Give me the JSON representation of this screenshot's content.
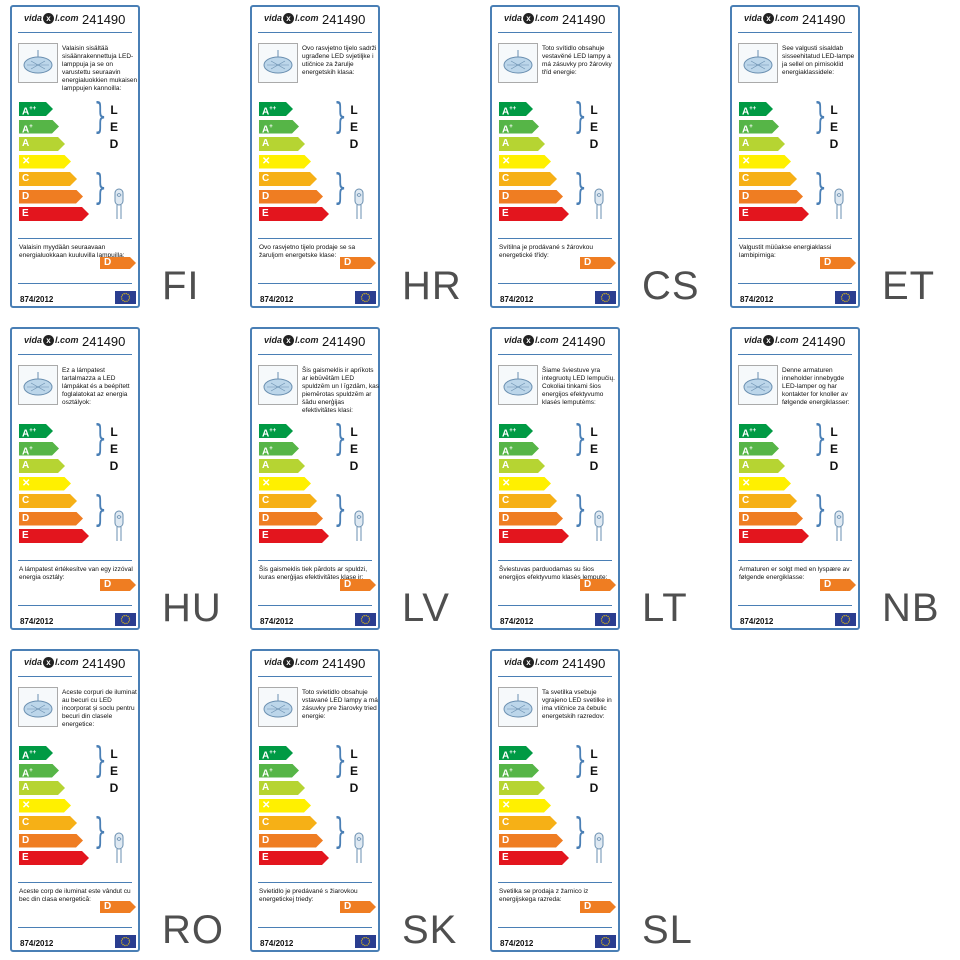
{
  "colors": {
    "border": "#4a7fb5",
    "app": "#009a44",
    "ap": "#56b547",
    "a": "#b6d432",
    "b": "#fff000",
    "c": "#f6b016",
    "d": "#ef7d22",
    "e": "#e3151e"
  },
  "common": {
    "brand_prefix": "vida",
    "brand_x": "x",
    "brand_suffix": "l.com",
    "product_code": "241490",
    "classes": [
      "A",
      "A",
      "A",
      "B",
      "C",
      "D",
      "E"
    ],
    "class_sups": [
      "++",
      "+",
      "",
      "",
      "",
      "",
      ""
    ],
    "led_letters": [
      "L",
      "E",
      "D"
    ],
    "energy_class": "D",
    "regulation": "874/2012"
  },
  "labels": [
    {
      "lang": "FI",
      "desc": "Valaisin sisältää sisäänrakennettuja LED-lamppuja ja se on varustettu seuraavin energialuokkien mukaisen lamppujen kannoilla:",
      "footer": "Valaisin myydään seuraavaan energialuokkaan kuuluvilla lampuilla:"
    },
    {
      "lang": "HR",
      "desc": "Ovo rasvjetno tijelo sadrži ugrađene LED svjetiljke i utičnice za žarulje energetskih klasa:",
      "footer": "Ovo rasvjetno tijelo prodaje se sa žaruljom energetske klase:"
    },
    {
      "lang": "CS",
      "desc": "Toto svítidlo obsahuje vestavěné LED lampy a má zásuvky pro žárovky tříd energie:",
      "footer": "Svítilna je prodávané s žárovkou energetické třídy:"
    },
    {
      "lang": "ET",
      "desc": "See valgusti sisaldab sisseehitatud LED-lampe ja sellel on pirnisoklid energiaklassidele:",
      "footer": "Valgustit müüakse energiaklassi lambipirniga:"
    },
    {
      "lang": "HU",
      "desc": "Ez a lámpatest tartalmazza a LED lámpákat és a beépített foglalatokat az energia osztályok:",
      "footer": "A lámpatest értékesítve van egy izzóval energia osztály:"
    },
    {
      "lang": "LV",
      "desc": "Šis gaismeklis ir aprīkots ar iebūvētām LED spuldzēm un l īgzdām, kas piemērotas spuldzēm ar šādu enerģijas efektivitātes klasi:",
      "footer": "Šis gaismeklis tiek pārdots ar spuldzi, kuras enerģijas efektivitātes klase ir:"
    },
    {
      "lang": "LT",
      "desc": "Šiame šviestuve yra integruotų LED lempučių. Cokoliai tinkami šios energijos efektyvumo klasės lemputėms:",
      "footer": "Šviestuvas parduodamas su šios energijos efektyvumo klasės lempute:"
    },
    {
      "lang": "NB",
      "desc": "Denne armaturen inneholder innebygde LED-lamper og har kontakter for knoller av følgende energiklasser:",
      "footer": "Armaturen er solgt med en lyspære av følgende energiklasse:"
    },
    {
      "lang": "RO",
      "desc": "Aceste corpuri de iluminat au becuri cu LED incorporat și soclu pentru becuri din clasele energetice:",
      "footer": "Aceste corp de iluminat este vândut cu bec din clasa energetică:"
    },
    {
      "lang": "SK",
      "desc": "Toto svietidlo obsahuje vstavané LED lampy a má zásuvky pre žiarovky tried energie:",
      "footer": "Svietidlo je predávané s žiarovkou energetickej triedy:"
    },
    {
      "lang": "SL",
      "desc": "Ta svetilka vsebuje vgrajeno LED svetilke in ima vtičnice za čebulic energetskih razredov:",
      "footer": "Svetilka se prodaja z žarnico iz energijskega razreda:"
    }
  ]
}
